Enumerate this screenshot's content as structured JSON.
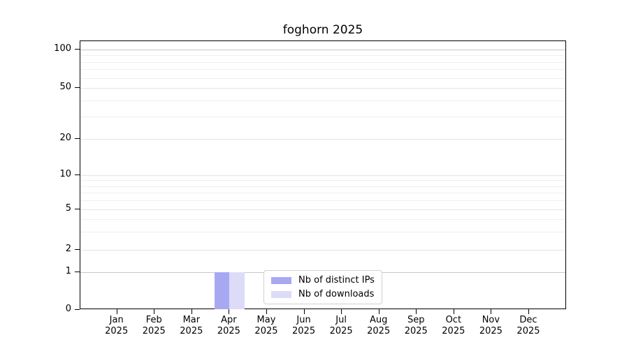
{
  "chart_data": {
    "type": "bar",
    "title": "foghorn 2025",
    "categories": [
      "Jan",
      "Feb",
      "Mar",
      "Apr",
      "May",
      "Jun",
      "Jul",
      "Aug",
      "Sep",
      "Oct",
      "Nov",
      "Dec"
    ],
    "category_year": "2025",
    "series": [
      {
        "name": "Nb of distinct IPs",
        "color": "#a8a8f2",
        "values": [
          0,
          0,
          0,
          1,
          0,
          0,
          0,
          0,
          0,
          0,
          0,
          0
        ]
      },
      {
        "name": "Nb of downloads",
        "color": "#dcdcf8",
        "values": [
          0,
          0,
          0,
          1,
          0,
          0,
          0,
          0,
          0,
          0,
          0,
          0
        ]
      }
    ],
    "xlabel": "",
    "ylabel": "",
    "y_axis": {
      "scale": "symlog",
      "ticks": [
        0,
        1,
        2,
        5,
        10,
        20,
        50,
        100
      ],
      "range": [
        0,
        115
      ]
    },
    "grid": {
      "horizontal": true,
      "vertical": false
    },
    "legend": {
      "position": "lower center"
    }
  }
}
